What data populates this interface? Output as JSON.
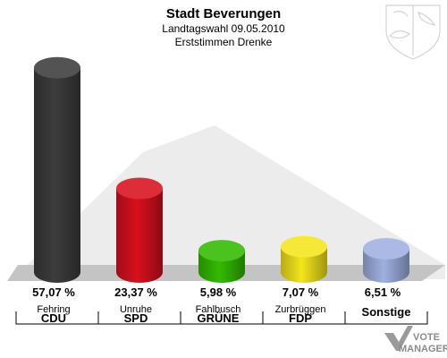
{
  "header": {
    "title": "Stadt Beverungen",
    "subtitle": "Landtagswahl 09.05.2010",
    "subtitle2": "Erststimmen Drenke"
  },
  "watermark": {
    "line1": "VOTE",
    "line2": "MANAGER",
    "icon": "vote-manager-logo-icon"
  },
  "emblem": {
    "icon": "nrw-coat-of-arms-icon",
    "color": "#d8d8d8"
  },
  "chart_data": {
    "type": "bar",
    "title": "Stadt Beverungen",
    "xlabel": "",
    "ylabel": "",
    "ylim": [
      0,
      60
    ],
    "grid": false,
    "legend": "none",
    "categories": [
      "CDU",
      "SPD",
      "GRÜNE",
      "FDP",
      "Sonstige"
    ],
    "candidates": [
      "Fehring",
      "Unruhe",
      "Fahlbusch",
      "Zurbrüggen",
      ""
    ],
    "values": [
      57.07,
      23.37,
      5.98,
      7.07,
      6.51
    ],
    "value_labels": [
      "57,07 %",
      "23,37 %",
      "5,98 %",
      "7,07 %",
      "6,51 %"
    ],
    "colors": [
      "#3c3c3c",
      "#d8101e",
      "#33bb00",
      "#f4e51c",
      "#9fb0e0"
    ]
  }
}
